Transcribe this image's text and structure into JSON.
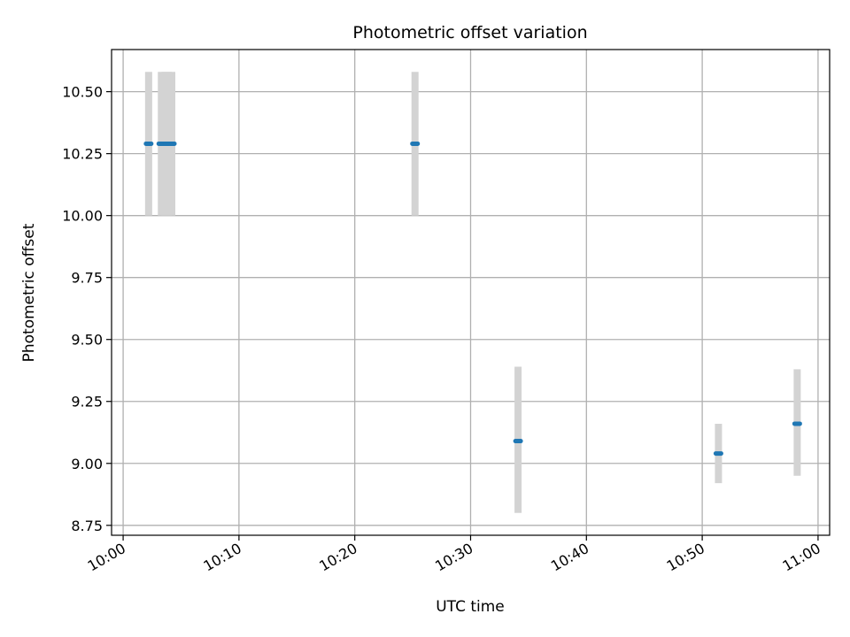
{
  "chart_data": {
    "type": "scatter",
    "title": "Photometric offset variation",
    "xlabel": "UTC time",
    "ylabel": "Photometric offset",
    "x_ticks": [
      "10:00",
      "10:10",
      "10:20",
      "10:30",
      "10:40",
      "10:50",
      "11:00"
    ],
    "y_ticks": [
      "8.75",
      "9.00",
      "9.25",
      "9.50",
      "9.75",
      "10.00",
      "10.25",
      "10.50"
    ],
    "xlim": [
      "09:59",
      "11:01"
    ],
    "ylim": [
      8.71,
      10.67
    ],
    "grid": true,
    "error_bar_color": "#d3d3d3",
    "marker_color": "#1f77b4",
    "points": [
      {
        "t": "10:02:12",
        "y": 10.29,
        "ylo": 10.0,
        "yhi": 10.58
      },
      {
        "t": "10:03:18",
        "y": 10.29,
        "ylo": 10.0,
        "yhi": 10.58
      },
      {
        "t": "10:03:36",
        "y": 10.29,
        "ylo": 10.0,
        "yhi": 10.58
      },
      {
        "t": "10:03:54",
        "y": 10.29,
        "ylo": 10.0,
        "yhi": 10.58
      },
      {
        "t": "10:04:12",
        "y": 10.29,
        "ylo": 10.0,
        "yhi": 10.58
      },
      {
        "t": "10:25:12",
        "y": 10.29,
        "ylo": 10.0,
        "yhi": 10.58
      },
      {
        "t": "10:34:06",
        "y": 9.09,
        "ylo": 8.8,
        "yhi": 9.39
      },
      {
        "t": "10:51:24",
        "y": 9.04,
        "ylo": 8.92,
        "yhi": 9.16
      },
      {
        "t": "10:58:12",
        "y": 9.16,
        "ylo": 8.95,
        "yhi": 9.38
      }
    ]
  }
}
